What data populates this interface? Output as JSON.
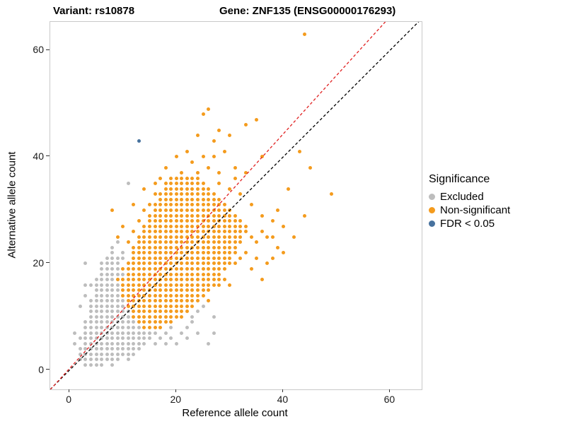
{
  "chart_data": {
    "type": "scatter",
    "title_left": "Variant: rs10878",
    "title_right": "Gene: ZNF135 (ENSG00000176293)",
    "xlabel": "Reference allele count",
    "ylabel": "Alternative allele count",
    "x_ticks": [
      0,
      20,
      40,
      60
    ],
    "y_ticks": [
      0,
      20,
      40,
      60
    ],
    "xlim": [
      -3.6,
      65.9
    ],
    "ylim": [
      -3.6,
      65.3
    ],
    "grid": false,
    "legend": {
      "title": "Significance",
      "position": "right"
    },
    "series": [
      {
        "name": "Excluded",
        "color": "#BDBDBD",
        "runs": [
          [
            1,
            3,
            6
          ],
          [
            2,
            2,
            9
          ],
          [
            3,
            2,
            11
          ],
          [
            4,
            2,
            13
          ],
          [
            5,
            3,
            14
          ],
          [
            6,
            2,
            15
          ],
          [
            7,
            3,
            15
          ],
          [
            8,
            3,
            13
          ],
          [
            9,
            3,
            12
          ],
          [
            10,
            4,
            11
          ],
          [
            11,
            4,
            11
          ],
          [
            12,
            4,
            10
          ],
          [
            13,
            4,
            10
          ],
          [
            14,
            5,
            9
          ],
          [
            15,
            5,
            9
          ],
          [
            16,
            4,
            9
          ],
          [
            17,
            5,
            9
          ],
          [
            18,
            6,
            10
          ],
          [
            19,
            6,
            9
          ],
          [
            20,
            6,
            9
          ],
          [
            21,
            7,
            9
          ]
        ],
        "points": [
          [
            8,
            1
          ],
          [
            11,
            2
          ],
          [
            12,
            3
          ],
          [
            1,
            5
          ],
          [
            16,
            5
          ],
          [
            18,
            5
          ],
          [
            20,
            5
          ],
          [
            26,
            5
          ],
          [
            1,
            7
          ],
          [
            17,
            6
          ],
          [
            19,
            6
          ],
          [
            22,
            6
          ],
          [
            16,
            7
          ],
          [
            18,
            7
          ],
          [
            21,
            7
          ],
          [
            24,
            7
          ],
          [
            27,
            7
          ],
          [
            19,
            8
          ],
          [
            22,
            8
          ],
          [
            23,
            9
          ],
          [
            23,
            10
          ],
          [
            27,
            10
          ],
          [
            24,
            11
          ],
          [
            25,
            12
          ],
          [
            2,
            12
          ],
          [
            3,
            14
          ],
          [
            3,
            16
          ],
          [
            3,
            20
          ],
          [
            10,
            21
          ],
          [
            8,
            22
          ],
          [
            10,
            22
          ],
          [
            8,
            23
          ],
          [
            9,
            24
          ],
          [
            11,
            35
          ]
        ]
      },
      {
        "name": "Non-significant",
        "color": "#F49B1D",
        "runs": [
          [
            8,
            14,
            17
          ],
          [
            9,
            13,
            19
          ],
          [
            10,
            12,
            21
          ],
          [
            11,
            12,
            22
          ],
          [
            12,
            11,
            23
          ],
          [
            13,
            11,
            24
          ],
          [
            14,
            10,
            25
          ],
          [
            15,
            10,
            26
          ],
          [
            16,
            10,
            27
          ],
          [
            17,
            10,
            28
          ],
          [
            18,
            11,
            28
          ],
          [
            19,
            11,
            29
          ],
          [
            20,
            11,
            30
          ],
          [
            21,
            12,
            30
          ],
          [
            22,
            12,
            31
          ],
          [
            23,
            12,
            31
          ],
          [
            24,
            13,
            32
          ],
          [
            25,
            13,
            32
          ],
          [
            26,
            14,
            33
          ],
          [
            27,
            14,
            33
          ],
          [
            28,
            15,
            32
          ],
          [
            29,
            15,
            31
          ],
          [
            30,
            16,
            30
          ],
          [
            31,
            16,
            29
          ],
          [
            32,
            17,
            28
          ],
          [
            33,
            17,
            27
          ],
          [
            34,
            18,
            26
          ],
          [
            35,
            18,
            25
          ],
          [
            36,
            19,
            24
          ]
        ],
        "points": [
          [
            9,
            17
          ],
          [
            9,
            25
          ],
          [
            10,
            19
          ],
          [
            8,
            30
          ],
          [
            26,
            13
          ],
          [
            28,
            16
          ],
          [
            29,
            17
          ],
          [
            30,
            16
          ],
          [
            31,
            20
          ],
          [
            32,
            21
          ],
          [
            33,
            22
          ],
          [
            34,
            25
          ],
          [
            35,
            24
          ],
          [
            36,
            26
          ],
          [
            34,
            19
          ],
          [
            35,
            21
          ],
          [
            36,
            17
          ],
          [
            37,
            20
          ],
          [
            38,
            21
          ],
          [
            38,
            25
          ],
          [
            39,
            23
          ],
          [
            40,
            27
          ],
          [
            42,
            25
          ],
          [
            44,
            29
          ],
          [
            45,
            38
          ],
          [
            49,
            33
          ],
          [
            43,
            41
          ],
          [
            44,
            63
          ],
          [
            35,
            47
          ],
          [
            33,
            46
          ],
          [
            30,
            44
          ],
          [
            28,
            45
          ],
          [
            26,
            49
          ],
          [
            25,
            48
          ],
          [
            27,
            43
          ],
          [
            24,
            44
          ],
          [
            22,
            41
          ],
          [
            20,
            40
          ],
          [
            18,
            38
          ],
          [
            21,
            37
          ],
          [
            23,
            39
          ],
          [
            25,
            40
          ],
          [
            27,
            40
          ],
          [
            29,
            41
          ],
          [
            31,
            38
          ],
          [
            33,
            37
          ],
          [
            28,
            37
          ],
          [
            26,
            38
          ],
          [
            24,
            37
          ],
          [
            30,
            34
          ],
          [
            32,
            33
          ],
          [
            34,
            31
          ],
          [
            36,
            29
          ],
          [
            38,
            28
          ],
          [
            40,
            22
          ],
          [
            37,
            25
          ],
          [
            39,
            30
          ],
          [
            41,
            34
          ],
          [
            36,
            40
          ],
          [
            28,
            35
          ],
          [
            31,
            36
          ],
          [
            17,
            36
          ],
          [
            16,
            33
          ],
          [
            15,
            31
          ],
          [
            14,
            30
          ],
          [
            13,
            28
          ],
          [
            12,
            26
          ],
          [
            11,
            24
          ],
          [
            10,
            27
          ],
          [
            12,
            31
          ],
          [
            14,
            34
          ],
          [
            16,
            35
          ]
        ]
      },
      {
        "name": "FDR < 0.05",
        "color": "#47729E",
        "runs": [],
        "points": [
          [
            13,
            43
          ]
        ]
      }
    ],
    "lines": [
      {
        "name": "identity-line",
        "color": "#000000",
        "dash": true,
        "slope": 1.0,
        "intercept": 0
      },
      {
        "name": "fit-line",
        "color": "#E02020",
        "dash": true,
        "slope": 1.1,
        "intercept": 0.3
      }
    ]
  }
}
